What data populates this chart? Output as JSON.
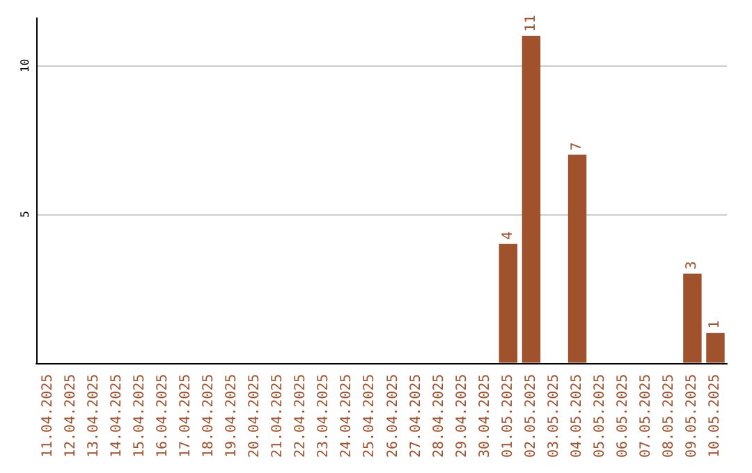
{
  "chart_data": {
    "type": "bar",
    "categories": [
      "11.04.2025",
      "12.04.2025",
      "13.04.2025",
      "14.04.2025",
      "15.04.2025",
      "16.04.2025",
      "17.04.2025",
      "18.04.2025",
      "19.04.2025",
      "20.04.2025",
      "21.04.2025",
      "22.04.2025",
      "23.04.2025",
      "24.04.2025",
      "25.04.2025",
      "26.04.2025",
      "27.04.2025",
      "28.04.2025",
      "29.04.2025",
      "30.04.2025",
      "01.05.2025",
      "02.05.2025",
      "03.05.2025",
      "04.05.2025",
      "05.05.2025",
      "06.05.2025",
      "07.05.2025",
      "08.05.2025",
      "09.05.2025",
      "10.05.2025"
    ],
    "values": [
      0,
      0,
      0,
      0,
      0,
      0,
      0,
      0,
      0,
      0,
      0,
      0,
      0,
      0,
      0,
      0,
      0,
      0,
      0,
      0,
      4,
      11,
      0,
      7,
      0,
      0,
      0,
      0,
      3,
      1
    ],
    "value_labels": [
      null,
      null,
      null,
      null,
      null,
      null,
      null,
      null,
      null,
      null,
      null,
      null,
      null,
      null,
      null,
      null,
      null,
      null,
      null,
      null,
      "4",
      "11",
      null,
      "7",
      null,
      null,
      null,
      null,
      "3",
      "1"
    ],
    "color": "#a0522d",
    "ylim": [
      0,
      11.6
    ],
    "yticks": [
      5,
      10
    ],
    "grid": "y"
  }
}
